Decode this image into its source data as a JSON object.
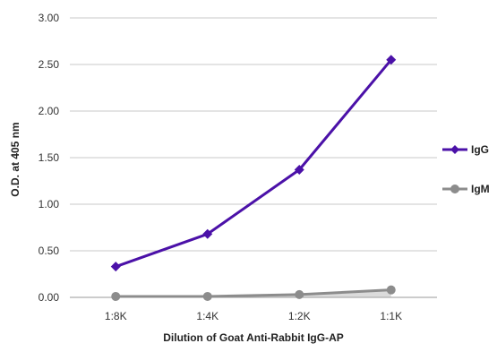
{
  "chart_data": {
    "type": "line",
    "title": "",
    "xlabel": "Dilution of Goat Anti-Rabbit IgG-AP",
    "ylabel": "O.D. at 405 nm",
    "categories": [
      "1:8K",
      "1:4K",
      "1:2K",
      "1:1K"
    ],
    "ylim": [
      0,
      3
    ],
    "yticks": [
      "0.00",
      "0.50",
      "1.00",
      "1.50",
      "2.00",
      "2.50",
      "3.00"
    ],
    "grid": true,
    "legend_position": "right",
    "series": [
      {
        "name": "IgG",
        "values": [
          0.33,
          0.68,
          1.37,
          2.55
        ],
        "color": "#4b11a8",
        "marker": "diamond"
      },
      {
        "name": "IgM",
        "values": [
          0.01,
          0.01,
          0.03,
          0.08
        ],
        "color": "#8c8c8c",
        "marker": "circle"
      }
    ]
  }
}
